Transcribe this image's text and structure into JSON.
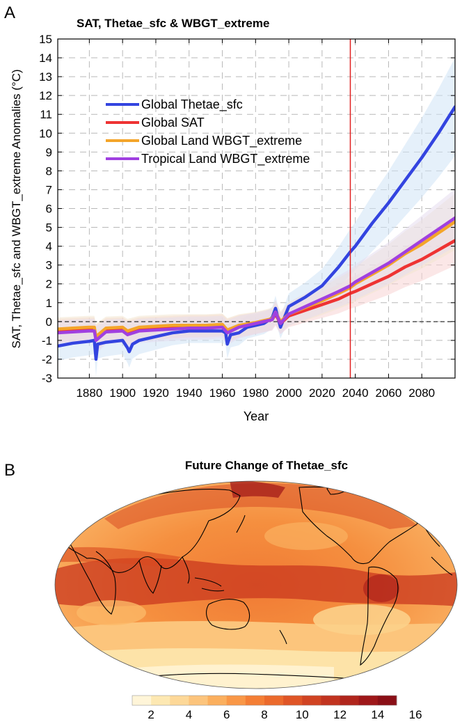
{
  "panel_a": {
    "letter": "A",
    "title": "SAT, Thetae_sfc & WBGT_extreme",
    "xlabel": "Year",
    "ylabel": "SAT, Thetae_sfc and WBGT_extreme Anomalies (°C)",
    "vline_year": 2037
  },
  "panel_b": {
    "letter": "B",
    "title": "Future Change of Thetae_sfc",
    "colorbar_ticks": [
      "2",
      "4",
      "6",
      "8",
      "10",
      "12",
      "14",
      "16"
    ],
    "colorbar_colors": [
      "#fff5d8",
      "#fde8b2",
      "#fdd898",
      "#fcc47c",
      "#fbaf5e",
      "#f99747",
      "#f47e35",
      "#eb6a2c",
      "#df5526",
      "#d04322",
      "#c1331f",
      "#b0251c",
      "#9e1719",
      "#8a0f16"
    ]
  },
  "chart_data": {
    "type": "line",
    "title": "SAT, Thetae_sfc & WBGT_extreme",
    "xlabel": "Year",
    "ylabel": "SAT, Thetae_sfc and WBGT_extreme Anomalies (°C)",
    "xlim": [
      1861,
      2100
    ],
    "ylim": [
      -3,
      15
    ],
    "xticks": [
      1880,
      1900,
      1920,
      1940,
      1960,
      1980,
      2000,
      2020,
      2040,
      2060,
      2080
    ],
    "yticks": [
      -3,
      -2,
      -1,
      0,
      1,
      2,
      3,
      4,
      5,
      6,
      7,
      8,
      9,
      10,
      11,
      12,
      13,
      14,
      15
    ],
    "grid": true,
    "legend_position": "upper-left",
    "series": [
      {
        "name": "Global Thetae_sfc",
        "color": "#3344e0",
        "x": [
          1861,
          1870,
          1880,
          1883,
          1884,
          1885,
          1890,
          1900,
          1903,
          1904,
          1906,
          1910,
          1920,
          1930,
          1940,
          1950,
          1960,
          1962,
          1963,
          1965,
          1970,
          1975,
          1980,
          1985,
          1990,
          1992,
          1995,
          2000,
          2010,
          2020,
          2030,
          2037,
          2040,
          2050,
          2060,
          2070,
          2080,
          2090,
          2100
        ],
        "y": [
          -1.3,
          -1.15,
          -1.05,
          -1.0,
          -2.0,
          -1.2,
          -1.1,
          -1.0,
          -1.4,
          -1.6,
          -1.2,
          -1.0,
          -0.8,
          -0.6,
          -0.5,
          -0.5,
          -0.5,
          -0.6,
          -1.2,
          -0.7,
          -0.6,
          -0.3,
          -0.2,
          -0.1,
          0.2,
          0.7,
          -0.3,
          0.8,
          1.3,
          1.9,
          2.9,
          3.7,
          4.0,
          5.2,
          6.3,
          7.5,
          8.7,
          10.0,
          11.4
        ]
      },
      {
        "name": "Global SAT",
        "color": "#ee3333",
        "x": [
          1861,
          1870,
          1880,
          1883,
          1884,
          1890,
          1900,
          1903,
          1910,
          1920,
          1930,
          1940,
          1950,
          1960,
          1963,
          1970,
          1980,
          1990,
          1992,
          1995,
          2000,
          2010,
          2020,
          2030,
          2037,
          2040,
          2050,
          2060,
          2070,
          2080,
          2090,
          2100
        ],
        "y": [
          -0.5,
          -0.45,
          -0.4,
          -0.4,
          -0.9,
          -0.45,
          -0.4,
          -0.6,
          -0.4,
          -0.35,
          -0.3,
          -0.25,
          -0.25,
          -0.2,
          -0.5,
          -0.25,
          -0.1,
          0.1,
          0.4,
          -0.1,
          0.3,
          0.6,
          0.9,
          1.2,
          1.5,
          1.6,
          2.0,
          2.4,
          2.9,
          3.3,
          3.8,
          4.3
        ]
      },
      {
        "name": "Global Land WBGT_extreme",
        "color": "#f4a52a",
        "x": [
          1861,
          1870,
          1880,
          1883,
          1884,
          1890,
          1900,
          1903,
          1910,
          1920,
          1930,
          1940,
          1950,
          1960,
          1963,
          1970,
          1980,
          1990,
          1992,
          1995,
          2000,
          2010,
          2020,
          2030,
          2037,
          2040,
          2050,
          2060,
          2070,
          2080,
          2090,
          2100
        ],
        "y": [
          -0.4,
          -0.35,
          -0.3,
          -0.3,
          -0.8,
          -0.35,
          -0.3,
          -0.5,
          -0.3,
          -0.25,
          -0.2,
          -0.2,
          -0.2,
          -0.15,
          -0.45,
          -0.2,
          -0.05,
          0.15,
          0.5,
          0.0,
          0.4,
          0.75,
          1.1,
          1.5,
          1.8,
          2.0,
          2.5,
          3.0,
          3.6,
          4.1,
          4.7,
          5.3
        ]
      },
      {
        "name": "Tropical Land WBGT_extreme",
        "color": "#a040e0",
        "x": [
          1861,
          1870,
          1880,
          1883,
          1884,
          1890,
          1900,
          1903,
          1910,
          1920,
          1930,
          1940,
          1950,
          1960,
          1963,
          1970,
          1980,
          1990,
          1992,
          1995,
          2000,
          2010,
          2020,
          2030,
          2037,
          2040,
          2050,
          2060,
          2070,
          2080,
          2090,
          2100
        ],
        "y": [
          -0.6,
          -0.55,
          -0.5,
          -0.5,
          -1.0,
          -0.55,
          -0.5,
          -0.7,
          -0.5,
          -0.45,
          -0.4,
          -0.35,
          -0.35,
          -0.3,
          -0.6,
          -0.3,
          -0.1,
          0.1,
          0.5,
          -0.1,
          0.4,
          0.8,
          1.2,
          1.6,
          1.9,
          2.1,
          2.6,
          3.1,
          3.7,
          4.3,
          4.9,
          5.5
        ]
      }
    ]
  }
}
